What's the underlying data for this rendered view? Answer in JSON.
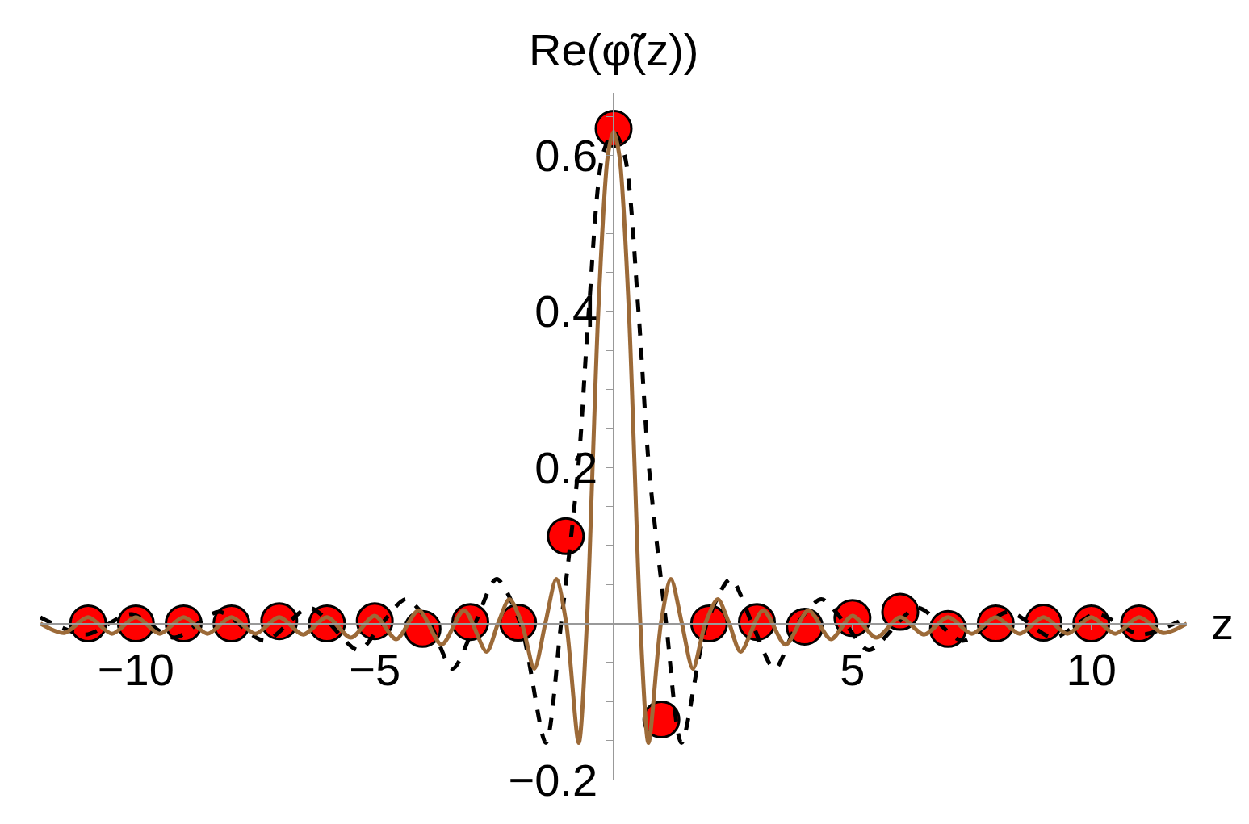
{
  "chart_data": {
    "type": "line",
    "xlabel": "z",
    "ylabel": "Re(φ̃(z))",
    "xlim": [
      -12,
      12
    ],
    "ylim": [
      -0.2,
      0.68
    ],
    "xticks": [
      {
        "value": -10,
        "label": "−10"
      },
      {
        "value": -5,
        "label": "−5"
      },
      5,
      10
    ],
    "yticks": [
      {
        "value": -0.2,
        "label": "−0.2"
      },
      {
        "value": -0.15,
        "label": null
      },
      {
        "value": -0.1,
        "label": null
      },
      {
        "value": -0.05,
        "label": null
      },
      {
        "value": 0.05,
        "label": null
      },
      {
        "value": 0.1,
        "label": null
      },
      {
        "value": 0.15,
        "label": null
      },
      0.2,
      {
        "value": 0.25,
        "label": null
      },
      {
        "value": 0.3,
        "label": null
      },
      {
        "value": 0.35,
        "label": null
      },
      0.4,
      {
        "value": 0.45,
        "label": null
      },
      {
        "value": 0.5,
        "label": null
      },
      {
        "value": 0.55,
        "label": null
      },
      0.6,
      {
        "value": 0.65,
        "label": null
      }
    ],
    "series": [
      {
        "color": "#000000",
        "line_style": "dashed",
        "marker": "none",
        "x": [
          -12,
          -11.05,
          -10.1,
          -9.2,
          -8.26,
          -7.3,
          -6.36,
          -5.34,
          -4.85,
          -4.35,
          -3.85,
          -3.37,
          -2.9,
          -2.45,
          -1.95,
          -1.42,
          -1.1,
          -0.74,
          -0.52,
          -0.23,
          0,
          0.23,
          0.52,
          0.74,
          1.1,
          1.42,
          1.95,
          2.45,
          2.9,
          3.37,
          3.85,
          4.35,
          4.85,
          5.34,
          6.36,
          7.3,
          8.26,
          9.2,
          10.1,
          11.05,
          12
        ],
        "values": [
          0.008,
          -0.014,
          0.012,
          -0.018,
          0.015,
          -0.022,
          0.02,
          -0.034,
          0,
          0.031,
          0,
          -0.058,
          0,
          0.057,
          0,
          -0.153,
          0,
          0.2,
          0.4,
          0.6,
          0.63,
          0.6,
          0.4,
          0.2,
          0,
          -0.153,
          0,
          0.057,
          0,
          -0.058,
          0,
          0.031,
          0,
          -0.034,
          0.02,
          -0.022,
          0.015,
          -0.018,
          0.012,
          -0.014,
          0.008
        ]
      },
      {
        "color": "#9c6a38",
        "line_style": "solid",
        "marker": "none",
        "x": [
          -12,
          -11.5,
          -11,
          -10.5,
          -10,
          -9.5,
          -9,
          -8.5,
          -8,
          -7.5,
          -7,
          -6.5,
          -6,
          -5.5,
          -5,
          -4.55,
          -4.08,
          -3.6,
          -3.13,
          -2.66,
          -2.42,
          -2.18,
          -1.92,
          -1.66,
          -1.43,
          -1.2,
          -0.99,
          -0.73,
          -0.56,
          -0.44,
          -0.32,
          -0.12,
          0,
          0.12,
          0.32,
          0.44,
          0.56,
          0.73,
          0.99,
          1.2,
          1.43,
          1.66,
          1.92,
          2.18,
          2.42,
          2.66,
          3.13,
          3.6,
          4.08,
          4.55,
          5,
          5.5,
          6,
          6.5,
          7,
          7.5,
          8,
          8.5,
          9,
          9.5,
          10,
          10.5,
          11,
          11.5,
          12
        ],
        "values": [
          0,
          -0.012,
          0.008,
          -0.013,
          0.008,
          -0.013,
          0.008,
          -0.013,
          0.008,
          -0.013,
          0.008,
          -0.014,
          0.008,
          -0.018,
          0.01,
          -0.02,
          0.017,
          -0.027,
          0.017,
          -0.036,
          0,
          0.031,
          0,
          -0.058,
          0,
          0.057,
          0,
          -0.153,
          0,
          0.2,
          0.4,
          0.6,
          0.63,
          0.6,
          0.4,
          0.2,
          0,
          -0.153,
          0,
          0.057,
          0,
          -0.058,
          0,
          0.031,
          0,
          -0.036,
          0.017,
          -0.027,
          0.017,
          -0.02,
          0.01,
          -0.018,
          0.008,
          -0.014,
          0.008,
          -0.013,
          0.008,
          -0.013,
          0.008,
          -0.013,
          0.008,
          -0.013,
          0.008,
          -0.012,
          0
        ]
      },
      {
        "type": "scatter",
        "color": "#ff0000",
        "marker": "circle",
        "x": [
          -11,
          -10,
          -9,
          -8,
          -7,
          -6,
          -5,
          -4,
          -3,
          -2,
          -1,
          0,
          1,
          2,
          3,
          4,
          5,
          6,
          7,
          8,
          9,
          10,
          11
        ],
        "values": [
          0,
          0,
          0,
          0,
          0.003,
          0,
          0.003,
          -0.007,
          0.002,
          0.001,
          0.112,
          0.634,
          -0.123,
          0,
          0.002,
          -0.004,
          0.007,
          0.015,
          -0.007,
          0,
          0.001,
          0,
          0
        ]
      }
    ]
  }
}
